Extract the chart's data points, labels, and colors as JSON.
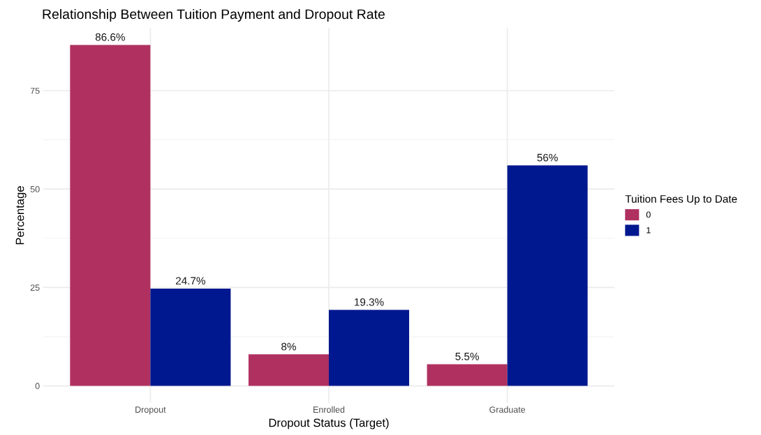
{
  "chart_data": {
    "type": "bar",
    "title": "Relationship Between Tuition Payment and Dropout Rate",
    "xlabel": "Dropout Status (Target)",
    "ylabel": "Percentage",
    "legend_title": "Tuition Fees Up to Date",
    "categories": [
      "Dropout",
      "Enrolled",
      "Graduate"
    ],
    "series": [
      {
        "name": "0",
        "color": "#b03060",
        "values": [
          86.6,
          8,
          5.5
        ],
        "value_labels": [
          "86.6%",
          "8%",
          "5.5%"
        ]
      },
      {
        "name": "1",
        "color": "#00188f",
        "values": [
          24.7,
          19.3,
          56
        ],
        "value_labels": [
          "24.7%",
          "19.3%",
          "56%"
        ]
      }
    ],
    "ylim": [
      -4.33,
      90.93
    ],
    "yticks": [
      0,
      25,
      50,
      75
    ],
    "grid": true,
    "legend": "right"
  }
}
